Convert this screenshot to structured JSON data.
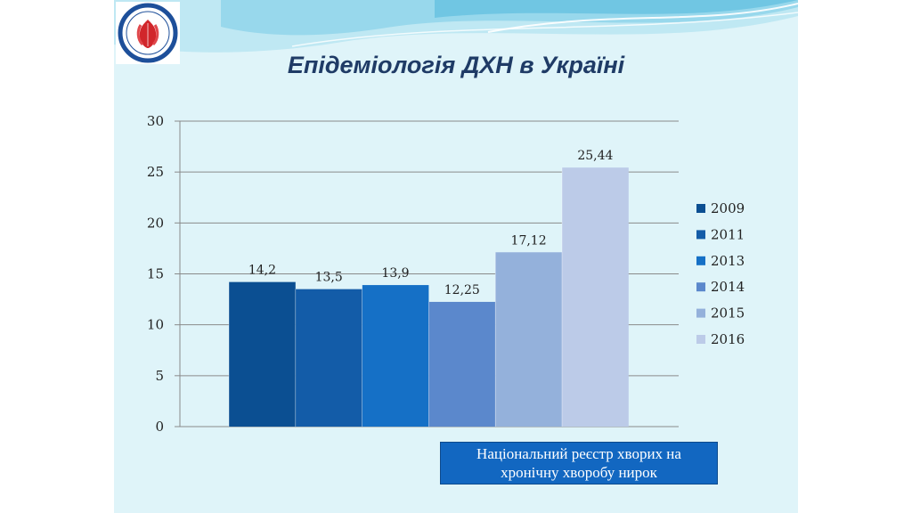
{
  "slide": {
    "title": "Епідеміологія ДХН в Україні",
    "note_line1": "Національний реєстр хворих на",
    "note_line2": "хронічну хворобу нирок",
    "note_color": "#1267c1",
    "logo_icon": "kidney-flower-logo"
  },
  "chart_data": {
    "type": "bar",
    "categories": [
      "2009",
      "2011",
      "2013",
      "2014",
      "2015",
      "2016"
    ],
    "values": [
      14.2,
      13.5,
      13.9,
      12.25,
      17.12,
      25.44
    ],
    "value_labels": [
      "14,2",
      "13,5",
      "13,9",
      "12,25",
      "17,12",
      "25,44"
    ],
    "colors": [
      "#0b4f92",
      "#135ca8",
      "#1570c6",
      "#5b88cc",
      "#94b1db",
      "#bccbe8"
    ],
    "ylim": [
      0,
      30
    ],
    "yticks": [
      "0",
      "5",
      "10",
      "15",
      "20",
      "25",
      "30"
    ],
    "grid": true,
    "legend": {
      "position": "right",
      "entries": [
        "2009",
        "2011",
        "2013",
        "2014",
        "2015",
        "2016"
      ]
    },
    "title": "",
    "xlabel": "",
    "ylabel": ""
  }
}
